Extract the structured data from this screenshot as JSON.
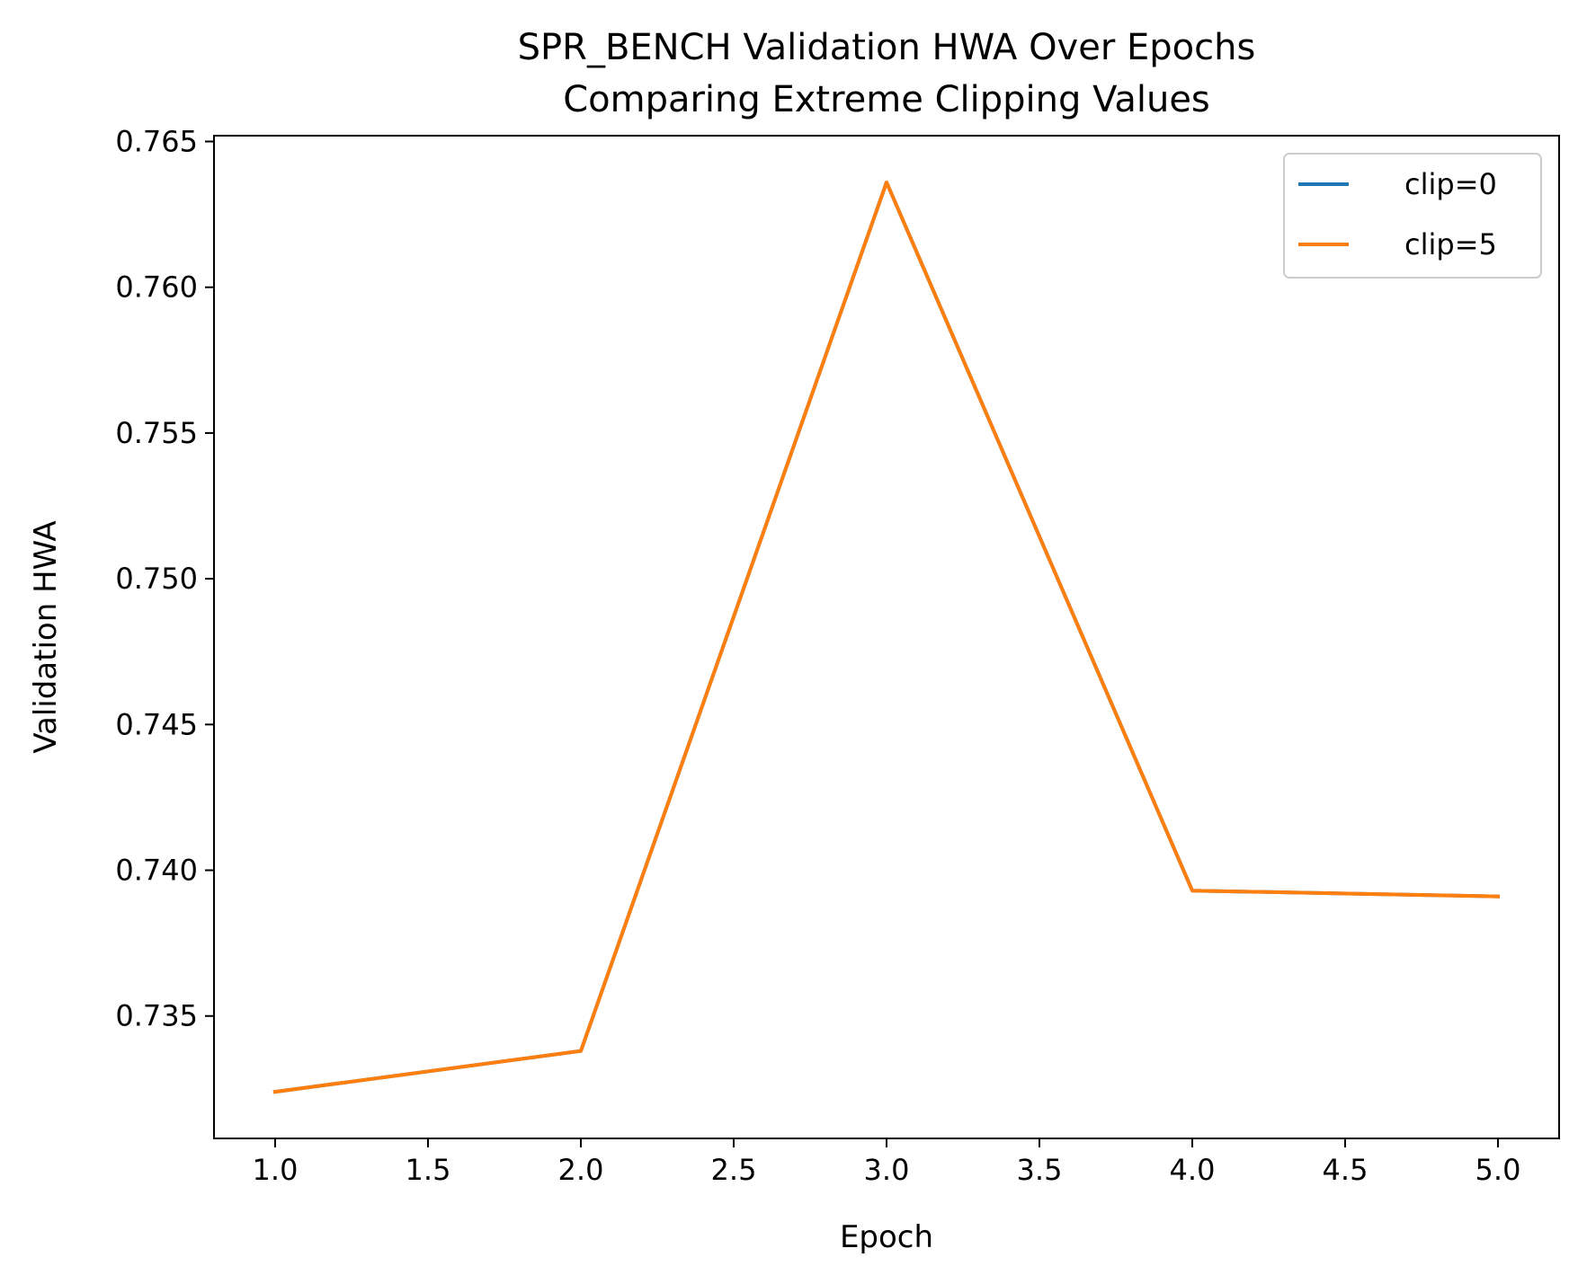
{
  "chart_data": {
    "type": "line",
    "title_line1": "SPR_BENCH Validation HWA Over Epochs",
    "title_line2": "Comparing Extreme Clipping Values",
    "xlabel": "Epoch",
    "ylabel": "Validation HWA",
    "xlim": [
      0.8,
      5.2
    ],
    "ylim": [
      0.7308,
      0.7652
    ],
    "xticks": [
      1.0,
      1.5,
      2.0,
      2.5,
      3.0,
      3.5,
      4.0,
      4.5,
      5.0
    ],
    "xtick_labels": [
      "1.0",
      "1.5",
      "2.0",
      "2.5",
      "3.0",
      "3.5",
      "4.0",
      "4.5",
      "5.0"
    ],
    "yticks": [
      0.735,
      0.74,
      0.745,
      0.75,
      0.755,
      0.76,
      0.765
    ],
    "ytick_labels": [
      "0.735",
      "0.740",
      "0.745",
      "0.750",
      "0.755",
      "0.760",
      "0.765"
    ],
    "grid": false,
    "legend_position": "top-right",
    "x": [
      1,
      2,
      3,
      4,
      5
    ],
    "series": [
      {
        "name": "clip=0",
        "color": "#1f77b4",
        "values": [
          0.7324,
          0.7338,
          0.7636,
          0.7393,
          0.7391
        ]
      },
      {
        "name": "clip=5",
        "color": "#ff7f0e",
        "values": [
          0.7324,
          0.7338,
          0.7636,
          0.7393,
          0.7391
        ]
      }
    ]
  }
}
